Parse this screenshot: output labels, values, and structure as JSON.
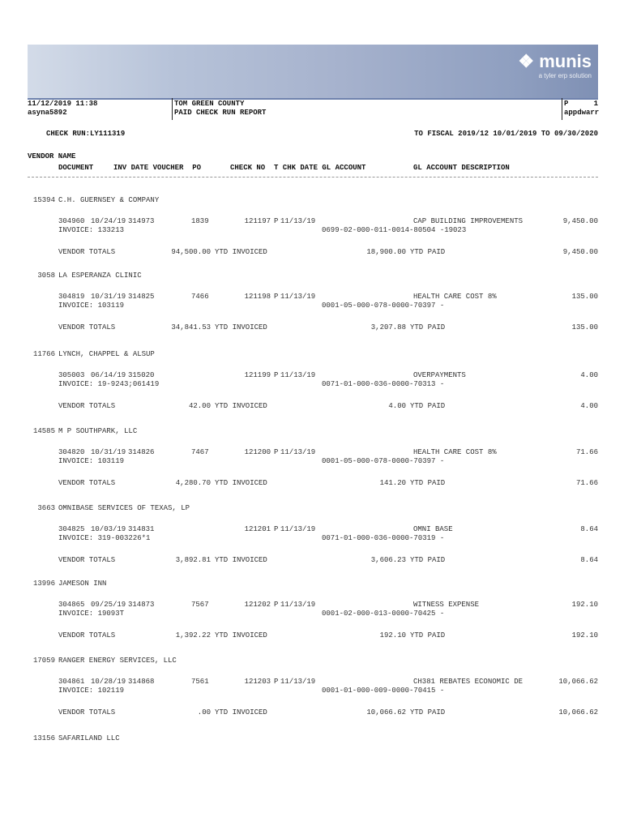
{
  "header": {
    "logo": {
      "name": "munis",
      "tagline": "a tyler erp solution"
    },
    "datetime": "11/12/2019 11:38",
    "user": "asyna5892",
    "org": "TOM GREEN COUNTY",
    "report_title": "PAID CHECK RUN REPORT",
    "page_label": "P",
    "page_number": "1",
    "program": "appdwarr",
    "check_run": "CHECK RUN:LY111319",
    "fiscal_range": "TO FISCAL 2019/12 10/01/2019 TO 09/30/2020"
  },
  "columns": {
    "vendor_name": "VENDOR NAME",
    "document": "DOCUMENT",
    "inv_date_voucher_po": "INV DATE VOUCHER  PO",
    "check_no": "CHECK NO",
    "t_chk_date_gl": "T CHK DATE GL ACCOUNT",
    "gl_desc": "GL ACCOUNT DESCRIPTION"
  },
  "labels": {
    "vendor_totals": "VENDOR TOTALS",
    "ytd_invoiced": "YTD INVOICED",
    "ytd_paid": "YTD PAID"
  },
  "vendors": [
    {
      "id": "15394",
      "name": "C.H. GUERNSEY & COMPANY",
      "document": "304960",
      "inv_date": "10/24/19",
      "voucher": "314973",
      "po": "1839",
      "check_no": "121197",
      "type": "P",
      "chk_date": "11/13/19",
      "gl_desc": "CAP BUILDING IMPROVEMENTS",
      "amount": "9,450.00",
      "invoice": "INVOICE: 133213",
      "gl_account": "0699-02-000-011-0014-80504 -19023",
      "ytd_invoiced": "94,500.00",
      "ytd_paid": "18,900.00",
      "total": "9,450.00"
    },
    {
      "id": "3058",
      "name": "LA ESPERANZA CLINIC",
      "document": "304819",
      "inv_date": "10/31/19",
      "voucher": "314825",
      "po": "7466",
      "check_no": "121198",
      "type": "P",
      "chk_date": "11/13/19",
      "gl_desc": "HEALTH CARE COST 8%",
      "amount": "135.00",
      "invoice": "INVOICE: 103119",
      "gl_account": "0001-05-000-078-0000-70397 -",
      "ytd_invoiced": "34,841.53",
      "ytd_paid": "3,207.88",
      "total": "135.00"
    },
    {
      "id": "11766",
      "name": "LYNCH, CHAPPEL & ALSUP",
      "document": "305003",
      "inv_date": "06/14/19",
      "voucher": "315020",
      "po": "",
      "check_no": "121199",
      "type": "P",
      "chk_date": "11/13/19",
      "gl_desc": "OVERPAYMENTS",
      "amount": "4.00",
      "invoice": "INVOICE: 19-9243;061419",
      "gl_account": "0071-01-000-036-0000-70313 -",
      "ytd_invoiced": "42.00",
      "ytd_paid": "4.00",
      "total": "4.00"
    },
    {
      "id": "14585",
      "name": "M P SOUTHPARK, LLC",
      "document": "304820",
      "inv_date": "10/31/19",
      "voucher": "314826",
      "po": "7467",
      "check_no": "121200",
      "type": "P",
      "chk_date": "11/13/19",
      "gl_desc": "HEALTH CARE COST 8%",
      "amount": "71.66",
      "invoice": "INVOICE: 103119",
      "gl_account": "0001-05-000-078-0000-70397 -",
      "ytd_invoiced": "4,280.70",
      "ytd_paid": "141.20",
      "total": "71.66"
    },
    {
      "id": "3663",
      "name": "OMNIBASE SERVICES OF TEXAS, LP",
      "document": "304825",
      "inv_date": "10/03/19",
      "voucher": "314831",
      "po": "",
      "check_no": "121201",
      "type": "P",
      "chk_date": "11/13/19",
      "gl_desc": "OMNI BASE",
      "amount": "8.64",
      "invoice": "INVOICE: 319-003226*1",
      "gl_account": "0071-01-000-036-0000-70319 -",
      "ytd_invoiced": "3,892.81",
      "ytd_paid": "3,606.23",
      "total": "8.64"
    },
    {
      "id": "13996",
      "name": "JAMESON INN",
      "document": "304865",
      "inv_date": "09/25/19",
      "voucher": "314873",
      "po": "7567",
      "check_no": "121202",
      "type": "P",
      "chk_date": "11/13/19",
      "gl_desc": "WITNESS EXPENSE",
      "amount": "192.10",
      "invoice": "INVOICE: 19093T",
      "gl_account": "0001-02-000-013-0000-70425 -",
      "ytd_invoiced": "1,392.22",
      "ytd_paid": "192.10",
      "total": "192.10"
    },
    {
      "id": "17059",
      "name": "RANGER ENERGY SERVICES, LLC",
      "document": "304861",
      "inv_date": "10/28/19",
      "voucher": "314868",
      "po": "7561",
      "check_no": "121203",
      "type": "P",
      "chk_date": "11/13/19",
      "gl_desc": "CH381 REBATES ECONOMIC DE",
      "amount": "10,066.62",
      "invoice": "INVOICE: 102119",
      "gl_account": "0001-01-000-009-0000-70415 -",
      "ytd_invoiced": ".00",
      "ytd_paid": "10,066.62",
      "total": "10,066.62"
    },
    {
      "id": "13156",
      "name": "SAFARILAND LLC"
    }
  ]
}
